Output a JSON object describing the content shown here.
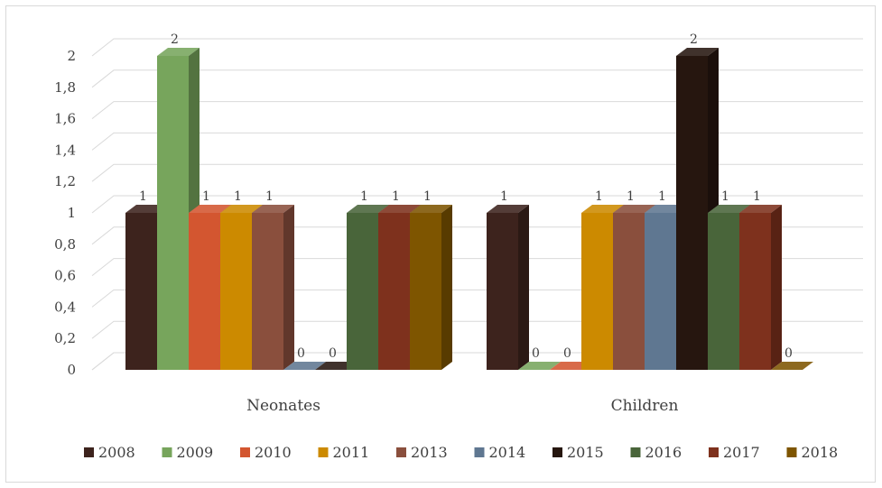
{
  "chart_data": {
    "type": "bar",
    "style": "3d-clustered-column",
    "categories": [
      "Neonates",
      "Children"
    ],
    "series": [
      {
        "name": "2008",
        "values": [
          1,
          1
        ],
        "color": "#3d231d"
      },
      {
        "name": "2009",
        "values": [
          2,
          0
        ],
        "color": "#77a55c"
      },
      {
        "name": "2010",
        "values": [
          1,
          0
        ],
        "color": "#d35630"
      },
      {
        "name": "2011",
        "values": [
          1,
          1
        ],
        "color": "#cc8a00"
      },
      {
        "name": "2013",
        "values": [
          1,
          1
        ],
        "color": "#8a4f3d"
      },
      {
        "name": "2014",
        "values": [
          0,
          1
        ],
        "color": "#5f7791"
      },
      {
        "name": "2015",
        "values": [
          0,
          2
        ],
        "color": "#26160f"
      },
      {
        "name": "2016",
        "values": [
          1,
          1
        ],
        "color": "#49653a"
      },
      {
        "name": "2017",
        "values": [
          1,
          1
        ],
        "color": "#7e311d"
      },
      {
        "name": "2018",
        "values": [
          1,
          0
        ],
        "color": "#7e5500"
      }
    ],
    "yticks": [
      "0",
      "0,2",
      "0,4",
      "0,6",
      "0,8",
      "1",
      "1,2",
      "1,4",
      "1,6",
      "1,8",
      "2"
    ],
    "ylim": [
      0,
      2
    ],
    "grid": true,
    "legend": "bottom",
    "data_labels": true,
    "title": "",
    "xlabel": "",
    "ylabel": ""
  }
}
